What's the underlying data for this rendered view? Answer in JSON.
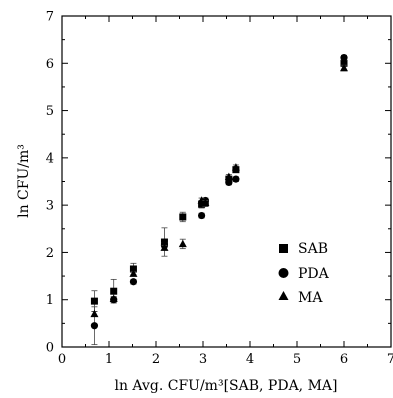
{
  "chart_data": {
    "type": "scatter",
    "xlabel": "ln Avg. CFU/m³[SAB, PDA, MA]",
    "ylabel": "ln CFU/m³",
    "xlim": [
      0,
      7
    ],
    "ylim": [
      0,
      7
    ],
    "xticks": [
      "0",
      "1",
      "2",
      "3",
      "4",
      "5",
      "6",
      "7"
    ],
    "yticks": [
      "0",
      "1",
      "2",
      "3",
      "4",
      "5",
      "6",
      "7"
    ],
    "grid": false,
    "legend_position": "lower-right",
    "series": [
      {
        "name": "SAB",
        "marker": "square",
        "points": [
          {
            "x": 0.69,
            "y": 0.97,
            "err": 0.22
          },
          {
            "x": 1.1,
            "y": 1.18,
            "err": 0.25
          },
          {
            "x": 1.52,
            "y": 1.65,
            "err": 0.12
          },
          {
            "x": 2.18,
            "y": 2.22,
            "err": 0.3
          },
          {
            "x": 2.57,
            "y": 2.75,
            "err": 0.1
          },
          {
            "x": 2.97,
            "y": 3.02,
            "err": 0.08
          },
          {
            "x": 3.05,
            "y": 3.05,
            "err": 0.08
          },
          {
            "x": 3.55,
            "y": 3.55,
            "err": 0.06
          },
          {
            "x": 3.7,
            "y": 3.75,
            "err": 0.06
          },
          {
            "x": 6.0,
            "y": 6.0,
            "err": 0.06
          }
        ]
      },
      {
        "name": "PDA",
        "marker": "circle",
        "points": [
          {
            "x": 0.69,
            "y": 0.45,
            "err": 0.4
          },
          {
            "x": 1.1,
            "y": 1.0,
            "err": 0.05
          },
          {
            "x": 1.52,
            "y": 1.38,
            "err": 0.05
          },
          {
            "x": 2.18,
            "y": 2.15,
            "err": 0.05
          },
          {
            "x": 2.97,
            "y": 2.78,
            "err": 0.05
          },
          {
            "x": 3.05,
            "y": 3.1,
            "err": 0.05
          },
          {
            "x": 3.55,
            "y": 3.48,
            "err": 0.05
          },
          {
            "x": 3.7,
            "y": 3.55,
            "err": 0.05
          },
          {
            "x": 6.0,
            "y": 6.12,
            "err": 0.05
          }
        ]
      },
      {
        "name": "MA",
        "marker": "triangle",
        "points": [
          {
            "x": 0.69,
            "y": 0.7,
            "err": 0.05
          },
          {
            "x": 1.1,
            "y": 1.02,
            "err": 0.05
          },
          {
            "x": 1.52,
            "y": 1.55,
            "err": 0.05
          },
          {
            "x": 2.18,
            "y": 2.1,
            "err": 0.05
          },
          {
            "x": 2.57,
            "y": 2.18,
            "err": 0.1
          },
          {
            "x": 2.97,
            "y": 3.1,
            "err": 0.05
          },
          {
            "x": 3.05,
            "y": 3.05,
            "err": 0.05
          },
          {
            "x": 3.55,
            "y": 3.6,
            "err": 0.05
          },
          {
            "x": 3.7,
            "y": 3.8,
            "err": 0.05
          },
          {
            "x": 6.0,
            "y": 5.9,
            "err": 0.06
          }
        ]
      }
    ]
  }
}
